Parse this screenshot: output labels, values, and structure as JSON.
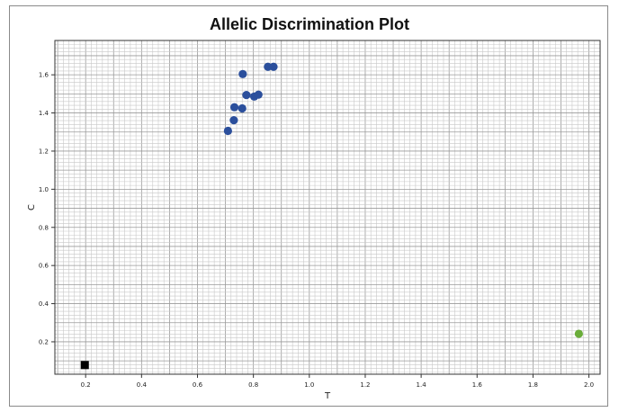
{
  "chart_data": {
    "type": "scatter",
    "title": "Allelic Discrimination Plot",
    "xlabel": "T",
    "ylabel": "C",
    "xlim": [
      0.09,
      2.04
    ],
    "ylim": [
      0.03,
      1.78
    ],
    "grid": true,
    "x_ticks": [
      0.2,
      0.4,
      0.6,
      0.8,
      1.0,
      1.2,
      1.4,
      1.6,
      1.8,
      2.0
    ],
    "x_tick_labels": [
      "0.2",
      "0.4",
      "0.6",
      "0.8",
      "1.0",
      "1.2",
      "1.4",
      "1.6",
      "1.8",
      "2.0"
    ],
    "y_ticks": [
      0.2,
      0.4,
      0.6,
      0.8,
      1.0,
      1.2,
      1.4,
      1.6
    ],
    "y_tick_labels": [
      "0.2",
      "0.4",
      "0.6",
      "0.8",
      "1.0",
      "1.2",
      "1.4",
      "1.6"
    ],
    "series": [
      {
        "color": "#2b4f9c",
        "marker": "circle",
        "x": [
          0.762,
          0.852,
          0.872,
          0.775,
          0.803,
          0.818,
          0.732,
          0.76,
          0.73,
          0.709
        ],
        "y": [
          1.604,
          1.642,
          1.642,
          1.494,
          1.486,
          1.496,
          1.43,
          1.424,
          1.362,
          1.306
        ]
      },
      {
        "color": "#6aad3a",
        "marker": "circle",
        "x": [
          1.964
        ],
        "y": [
          0.242
        ]
      },
      {
        "color": "#000000",
        "marker": "square",
        "x": [
          0.197
        ],
        "y": [
          0.078
        ]
      }
    ]
  }
}
